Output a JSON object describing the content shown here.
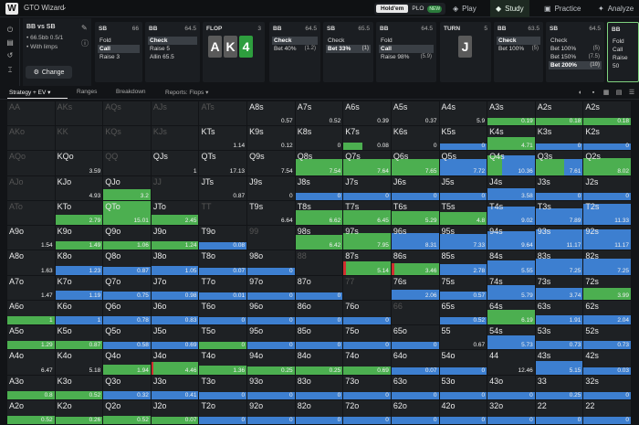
{
  "app": {
    "brand": "GTO Wizard",
    "mode_holdem": "Hold'em",
    "mode_plo": "PLO",
    "badge_new": "NEW",
    "nav_play": "Play",
    "nav_study": "Study",
    "nav_practice": "Practice",
    "nav_analyze": "Analyze"
  },
  "spot": {
    "title": "BB vs SB",
    "stacks": "66.5bb  0.5/1",
    "limps": "With limps",
    "change": "Change"
  },
  "nodes": [
    {
      "pos": "SB",
      "stack": "66",
      "actions": [
        {
          "label": "Fold",
          "selected": false,
          "pct": ""
        },
        {
          "label": "Call",
          "selected": true,
          "pct": ""
        },
        {
          "label": "Raise 3",
          "selected": false,
          "pct": ""
        }
      ]
    },
    {
      "pos": "BB",
      "stack": "64.5",
      "actions": [
        {
          "label": "Check",
          "selected": true,
          "pct": ""
        },
        {
          "label": "Raise 5",
          "selected": false,
          "pct": ""
        },
        {
          "label": "Allin 65.5",
          "selected": false,
          "pct": ""
        }
      ]
    },
    {
      "pos": "FLOP",
      "stack": "3",
      "actions": []
    },
    {
      "pos": "BB",
      "stack": "64.5",
      "actions": [
        {
          "label": "Check",
          "selected": true,
          "pct": ""
        },
        {
          "label": "Bet 40%",
          "selected": false,
          "pct": "(1.2)"
        }
      ]
    },
    {
      "pos": "SB",
      "stack": "65.5",
      "actions": [
        {
          "label": "Check",
          "selected": false,
          "pct": ""
        },
        {
          "label": "Bet 33%",
          "selected": true,
          "pct": "(1)"
        }
      ]
    },
    {
      "pos": "BB",
      "stack": "64.5",
      "actions": [
        {
          "label": "Fold",
          "selected": false,
          "pct": ""
        },
        {
          "label": "Call",
          "selected": true,
          "pct": ""
        },
        {
          "label": "Raise 98%",
          "selected": false,
          "pct": "(5.9)"
        }
      ]
    },
    {
      "pos": "TURN",
      "stack": "5",
      "actions": []
    },
    {
      "pos": "BB",
      "stack": "63.5",
      "actions": [
        {
          "label": "Check",
          "selected": true,
          "pct": ""
        },
        {
          "label": "Bet 100%",
          "selected": false,
          "pct": "(5)"
        }
      ]
    },
    {
      "pos": "SB",
      "stack": "64.5",
      "actions": [
        {
          "label": "Check",
          "selected": false,
          "pct": ""
        },
        {
          "label": "Bet 100%",
          "selected": false,
          "pct": "(5)"
        },
        {
          "label": "Bet 150%",
          "selected": false,
          "pct": "(7.5)"
        },
        {
          "label": "Bet 200%",
          "selected": true,
          "pct": "(10)"
        }
      ]
    },
    {
      "pos": "BB",
      "stack": "",
      "actions": [
        {
          "label": "Fold",
          "selected": false,
          "pct": ""
        },
        {
          "label": "Call",
          "selected": false,
          "pct": ""
        },
        {
          "label": "Raise 50",
          "selected": false,
          "pct": ""
        }
      ]
    }
  ],
  "board": {
    "flop": [
      "A",
      "K",
      "4"
    ],
    "turn": "J"
  },
  "toolbar": {
    "strategy": "Strategy + EV",
    "ranges": "Ranges",
    "breakdown": "Breakdown",
    "reports": "Reports: Flops"
  },
  "colors": {
    "raise": "#d12f2f",
    "call": "#4caf50",
    "fold": "#3d7fd0",
    "empty": "#1e2124"
  },
  "grid": [
    [
      [
        "AA",
        "",
        0,
        0,
        0
      ],
      [
        "AKs",
        "",
        0,
        0,
        0
      ],
      [
        "AQs",
        "",
        0,
        0,
        0
      ],
      [
        "AJs",
        "",
        0,
        0,
        0
      ],
      [
        "ATs",
        "",
        0,
        0,
        0
      ],
      [
        "A8s",
        "0.57",
        0,
        0,
        0
      ],
      [
        "A7s",
        "0.52",
        0,
        0,
        0
      ],
      [
        "A6s",
        "0.39",
        0,
        0,
        0
      ],
      [
        "A5s",
        "0.37",
        0,
        0,
        0
      ],
      [
        "A4s",
        "5.9",
        0,
        0,
        0
      ],
      [
        "A3s",
        "0.19",
        0,
        100,
        0
      ],
      [
        "A2s",
        "0.18",
        0,
        100,
        0
      ]
    ],
    [
      [
        "AKo",
        "",
        0,
        0,
        0
      ],
      [
        "KK",
        "",
        0,
        0,
        0
      ],
      [
        "KQs",
        "",
        0,
        0,
        0
      ],
      [
        "KJs",
        "",
        0,
        0,
        0
      ],
      [
        "KTs",
        "1.14",
        0,
        0,
        0
      ],
      [
        "K9s",
        "0.12",
        0,
        0,
        0
      ],
      [
        "K8s",
        "0",
        0,
        0,
        0
      ],
      [
        "K7s",
        "0.08",
        0,
        40,
        0
      ],
      [
        "K6s",
        "0",
        0,
        0,
        0
      ],
      [
        "K5s",
        "0",
        0,
        0,
        100
      ],
      [
        "K4s",
        "4.71",
        0,
        100,
        0
      ],
      [
        "K3s",
        "0",
        0,
        0,
        100
      ]
    ],
    [
      [
        "AQo",
        "",
        0,
        0,
        0
      ],
      [
        "KQo",
        "3.59",
        0,
        0,
        0
      ],
      [
        "QQ",
        "",
        0,
        0,
        0
      ],
      [
        "QJs",
        "1",
        0,
        0,
        0
      ],
      [
        "QTs",
        "17.13",
        0,
        0,
        0
      ],
      [
        "Q9s",
        "7.54",
        0,
        0,
        0
      ],
      [
        "Q8s",
        "7.54",
        0,
        100,
        0
      ],
      [
        "Q7s",
        "7.64",
        0,
        100,
        0
      ],
      [
        "Q6s",
        "7.65",
        0,
        100,
        0
      ],
      [
        "Q5s",
        "7.72",
        0,
        0,
        100
      ],
      [
        "Q4s",
        "10.36",
        0,
        30,
        70
      ],
      [
        "Q3s",
        "7.61",
        0,
        60,
        40
      ]
    ],
    [
      [
        "AJo",
        "",
        0,
        0,
        0
      ],
      [
        "KJo",
        "4.93",
        0,
        0,
        0
      ],
      [
        "QJo",
        "3.2",
        0,
        100,
        0
      ],
      [
        "JJ",
        "",
        0,
        0,
        0
      ],
      [
        "JTs",
        "0.87",
        0,
        0,
        0
      ],
      [
        "J9s",
        "0",
        0,
        0,
        0
      ],
      [
        "J8s",
        "0",
        0,
        0,
        100
      ],
      [
        "J7s",
        "0",
        0,
        0,
        100
      ],
      [
        "J6s",
        "0",
        0,
        0,
        100
      ],
      [
        "J5s",
        "0",
        0,
        0,
        100
      ],
      [
        "J4s",
        "3.58",
        0,
        0,
        100
      ],
      [
        "J3s",
        "0",
        0,
        0,
        100
      ]
    ],
    [
      [
        "ATo",
        "",
        0,
        0,
        0
      ],
      [
        "KTo",
        "2.79",
        0,
        100,
        0
      ],
      [
        "QTo",
        "15.01",
        0,
        100,
        0
      ],
      [
        "JTo",
        "2.45",
        0,
        100,
        0
      ],
      [
        "TT",
        "",
        0,
        0,
        0
      ],
      [
        "T9s",
        "6.64",
        0,
        0,
        0
      ],
      [
        "T8s",
        "6.62",
        0,
        100,
        0
      ],
      [
        "T7s",
        "6.45",
        0,
        100,
        0
      ],
      [
        "T6s",
        "5.29",
        0,
        100,
        0
      ],
      [
        "T5s",
        "4.8",
        0,
        100,
        0
      ],
      [
        "T4s",
        "9.02",
        0,
        0,
        100
      ],
      [
        "T3s",
        "7.89",
        0,
        0,
        100
      ]
    ],
    [
      [
        "A9o",
        "1.54",
        0,
        0,
        0
      ],
      [
        "K9o",
        "1.49",
        0,
        100,
        0
      ],
      [
        "Q9o",
        "1.06",
        0,
        100,
        0
      ],
      [
        "J9o",
        "1.24",
        0,
        100,
        0
      ],
      [
        "T9o",
        "0.08",
        0,
        0,
        100
      ],
      [
        "99",
        "",
        0,
        0,
        0
      ],
      [
        "98s",
        "6.42",
        0,
        100,
        0
      ],
      [
        "97s",
        "7.95",
        0,
        100,
        0
      ],
      [
        "96s",
        "8.31",
        0,
        0,
        100
      ],
      [
        "95s",
        "7.33",
        0,
        0,
        100
      ],
      [
        "94s",
        "9.64",
        0,
        0,
        100
      ],
      [
        "93s",
        "11.17",
        0,
        0,
        100
      ]
    ],
    [
      [
        "A8o",
        "1.63",
        0,
        0,
        0
      ],
      [
        "K8o",
        "1.23",
        0,
        0,
        100
      ],
      [
        "Q8o",
        "0.87",
        0,
        0,
        100
      ],
      [
        "J8o",
        "1.05",
        0,
        0,
        100
      ],
      [
        "T8o",
        "0.07",
        0,
        0,
        100
      ],
      [
        "98o",
        "0",
        0,
        0,
        100
      ],
      [
        "88",
        "",
        0,
        0,
        0
      ],
      [
        "87s",
        "5.14",
        5,
        95,
        0
      ],
      [
        "86s",
        "3.46",
        5,
        95,
        0
      ],
      [
        "85s",
        "2.78",
        0,
        0,
        100
      ],
      [
        "84s",
        "5.55",
        0,
        0,
        100
      ],
      [
        "83s",
        "7.25",
        0,
        0,
        100
      ]
    ],
    [
      [
        "A7o",
        "1.47",
        0,
        0,
        0
      ],
      [
        "K7o",
        "1.19",
        0,
        0,
        100
      ],
      [
        "Q7o",
        "0.75",
        0,
        0,
        100
      ],
      [
        "J7o",
        "0.98",
        0,
        0,
        100
      ],
      [
        "T7o",
        "0.01",
        0,
        0,
        100
      ],
      [
        "97o",
        "0",
        0,
        0,
        100
      ],
      [
        "87o",
        "0",
        0,
        0,
        100
      ],
      [
        "77",
        "",
        0,
        0,
        0
      ],
      [
        "76s",
        "2.06",
        0,
        0,
        100
      ],
      [
        "75s",
        "0.57",
        0,
        0,
        100
      ],
      [
        "74s",
        "5.79",
        0,
        0,
        100
      ],
      [
        "73s",
        "3.74",
        0,
        0,
        100
      ]
    ],
    [
      [
        "A6o",
        "1",
        0,
        100,
        0
      ],
      [
        "K6o",
        "1",
        0,
        0,
        100
      ],
      [
        "Q6o",
        "0.78",
        0,
        0,
        100
      ],
      [
        "J6o",
        "0.83",
        0,
        0,
        100
      ],
      [
        "T6o",
        "0",
        0,
        0,
        100
      ],
      [
        "96o",
        "0",
        0,
        0,
        100
      ],
      [
        "86o",
        "0",
        0,
        0,
        100
      ],
      [
        "76o",
        "0",
        0,
        0,
        100
      ],
      [
        "66",
        "",
        0,
        0,
        0
      ],
      [
        "65s",
        "0.52",
        0,
        0,
        100
      ],
      [
        "64s",
        "6.19",
        0,
        100,
        0
      ],
      [
        "63s",
        "1.91",
        0,
        0,
        100
      ]
    ],
    [
      [
        "A5o",
        "1.29",
        0,
        100,
        0
      ],
      [
        "K5o",
        "0.87",
        0,
        100,
        0
      ],
      [
        "Q5o",
        "0.58",
        0,
        0,
        100
      ],
      [
        "J5o",
        "0.69",
        0,
        0,
        100
      ],
      [
        "T5o",
        "0",
        0,
        100,
        0
      ],
      [
        "95o",
        "0",
        0,
        0,
        100
      ],
      [
        "85o",
        "0",
        0,
        0,
        100
      ],
      [
        "75o",
        "0",
        0,
        0,
        100
      ],
      [
        "65o",
        "0",
        0,
        0,
        100
      ],
      [
        "55",
        "0.67",
        0,
        0,
        0
      ],
      [
        "54s",
        "5.73",
        0,
        0,
        100
      ],
      [
        "53s",
        "0.73",
        0,
        0,
        100
      ]
    ],
    [
      [
        "A4o",
        "6.47",
        0,
        0,
        0
      ],
      [
        "K4o",
        "5.18",
        0,
        0,
        0
      ],
      [
        "Q4o",
        "1.94",
        0,
        100,
        0
      ],
      [
        "J4o",
        "4.46",
        5,
        95,
        0
      ],
      [
        "T4o",
        "1.36",
        0,
        100,
        0
      ],
      [
        "94o",
        "0.25",
        0,
        100,
        0
      ],
      [
        "84o",
        "0.25",
        0,
        100,
        0
      ],
      [
        "74o",
        "0.69",
        0,
        100,
        0
      ],
      [
        "64o",
        "0.07",
        0,
        0,
        100
      ],
      [
        "54o",
        "0",
        0,
        0,
        100
      ],
      [
        "44",
        "12.46",
        0,
        0,
        0
      ],
      [
        "43s",
        "5.15",
        0,
        0,
        100
      ]
    ],
    [
      [
        "A3o",
        "0.8",
        0,
        100,
        0
      ],
      [
        "K3o",
        "0.52",
        0,
        100,
        0
      ],
      [
        "Q3o",
        "0.32",
        0,
        0,
        100
      ],
      [
        "J3o",
        "0.41",
        0,
        0,
        100
      ],
      [
        "T3o",
        "0",
        0,
        0,
        100
      ],
      [
        "93o",
        "0",
        0,
        0,
        100
      ],
      [
        "83o",
        "0",
        0,
        0,
        100
      ],
      [
        "73o",
        "0",
        0,
        0,
        100
      ],
      [
        "63o",
        "0",
        0,
        0,
        100
      ],
      [
        "53o",
        "0",
        0,
        0,
        100
      ],
      [
        "43o",
        "0",
        0,
        0,
        100
      ],
      [
        "33",
        "0.25",
        0,
        0,
        100
      ]
    ],
    [
      [
        "A2o",
        "0.52",
        0,
        100,
        0
      ],
      [
        "K2o",
        "0.26",
        0,
        100,
        0
      ],
      [
        "Q2o",
        "0.52",
        0,
        100,
        0
      ],
      [
        "J2o",
        "0.07",
        0,
        100,
        0
      ],
      [
        "T2o",
        "0",
        0,
        0,
        100
      ],
      [
        "92o",
        "0",
        0,
        0,
        100
      ],
      [
        "82o",
        "0",
        0,
        0,
        100
      ],
      [
        "72o",
        "0",
        0,
        0,
        100
      ],
      [
        "62o",
        "0",
        0,
        0,
        100
      ],
      [
        "42o",
        "0",
        0,
        0,
        100
      ],
      [
        "32o",
        "0",
        0,
        0,
        100
      ],
      [
        "22",
        "0",
        0,
        0,
        100
      ]
    ]
  ],
  "extra_col": [
    [
      "A2s",
      "0.18",
      0,
      100,
      0
    ],
    [
      "K2s",
      "0",
      0,
      0,
      100
    ],
    [
      "Q2s",
      "8.02",
      0,
      100,
      0
    ],
    [
      "J2s",
      "0",
      0,
      0,
      100
    ],
    [
      "T2s",
      "11.33",
      0,
      0,
      100
    ],
    [
      "92s",
      "11.17",
      0,
      0,
      100
    ],
    [
      "82s",
      "7.25",
      0,
      0,
      100
    ],
    [
      "72s",
      "3.99",
      0,
      100,
      0
    ],
    [
      "62s",
      "2.04",
      0,
      0,
      100
    ],
    [
      "52s",
      "0.73",
      0,
      0,
      100
    ],
    [
      "42s",
      "0.03",
      0,
      0,
      100
    ],
    [
      "32s",
      "0",
      0,
      0,
      100
    ],
    [
      "22",
      "0",
      0,
      0,
      100
    ]
  ]
}
